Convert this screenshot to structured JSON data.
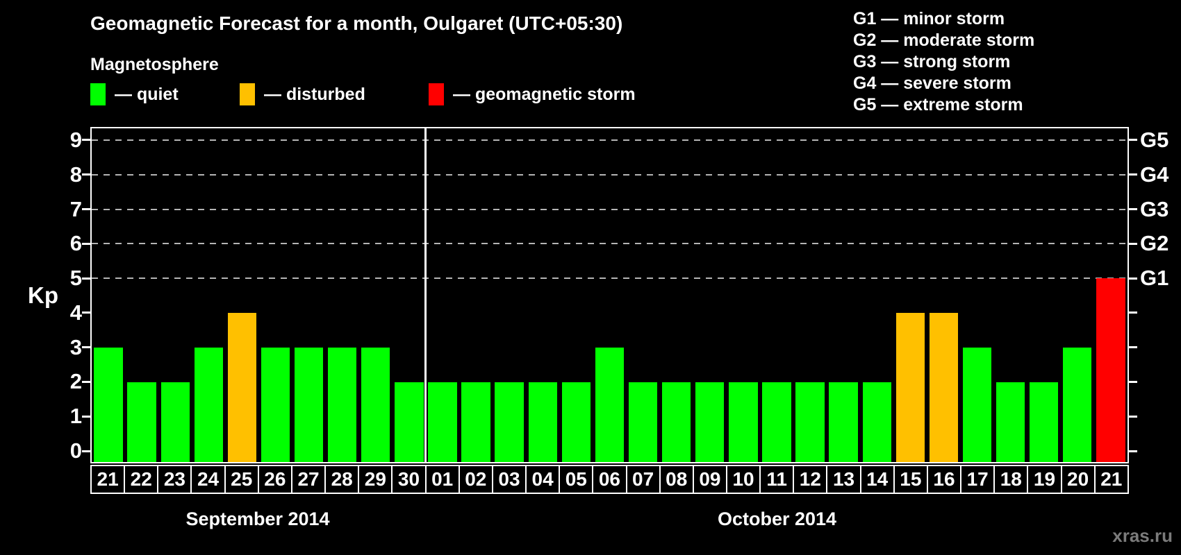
{
  "header": {
    "title": "Geomagnetic Forecast for a month, Oulgaret (UTC+05:30)",
    "subtitle": "Magnetosphere"
  },
  "legend": {
    "items": [
      {
        "id": "quiet",
        "label": "— quiet",
        "color": "#00ff00"
      },
      {
        "id": "disturbed",
        "label": "— disturbed",
        "color": "#ffc000"
      },
      {
        "id": "storm",
        "label": "— geomagnetic storm",
        "color": "#ff0000"
      }
    ]
  },
  "g_scale_legend": {
    "items": [
      "G1 — minor storm",
      "G2 — moderate storm",
      "G3 — strong storm",
      "G4 — severe storm",
      "G5 — extreme storm"
    ]
  },
  "chart_data": {
    "type": "bar",
    "title": "Geomagnetic Forecast for a month, Oulgaret (UTC+05:30)",
    "ylabel": "Kp",
    "ylim": [
      0,
      9
    ],
    "yticks": [
      0,
      1,
      2,
      3,
      4,
      5,
      6,
      7,
      8,
      9
    ],
    "grid": "dashed horizontal lines at Kp 5-9 (G1-G5 levels)",
    "right_axis": [
      {
        "kp": 5,
        "label": "G1"
      },
      {
        "kp": 6,
        "label": "G2"
      },
      {
        "kp": 7,
        "label": "G3"
      },
      {
        "kp": 8,
        "label": "G4"
      },
      {
        "kp": 9,
        "label": "G5"
      }
    ],
    "status_colors": {
      "quiet": "#00ff00",
      "disturbed": "#ffc000",
      "storm": "#ff0000"
    },
    "months": [
      {
        "label": "September 2014",
        "days": [
          "21",
          "22",
          "23",
          "24",
          "25",
          "26",
          "27",
          "28",
          "29",
          "30"
        ],
        "values": [
          3,
          2,
          2,
          3,
          4,
          3,
          3,
          3,
          3,
          2
        ],
        "status": [
          "quiet",
          "quiet",
          "quiet",
          "quiet",
          "disturbed",
          "quiet",
          "quiet",
          "quiet",
          "quiet",
          "quiet"
        ]
      },
      {
        "label": "October 2014",
        "days": [
          "01",
          "02",
          "03",
          "04",
          "05",
          "06",
          "07",
          "08",
          "09",
          "10",
          "11",
          "12",
          "13",
          "14",
          "15",
          "16",
          "17",
          "18",
          "19",
          "20",
          "21"
        ],
        "values": [
          2,
          2,
          2,
          2,
          2,
          3,
          2,
          2,
          2,
          2,
          2,
          2,
          2,
          2,
          4,
          4,
          3,
          2,
          2,
          3,
          5
        ],
        "status": [
          "quiet",
          "quiet",
          "quiet",
          "quiet",
          "quiet",
          "quiet",
          "quiet",
          "quiet",
          "quiet",
          "quiet",
          "quiet",
          "quiet",
          "quiet",
          "quiet",
          "disturbed",
          "disturbed",
          "quiet",
          "quiet",
          "quiet",
          "quiet",
          "storm"
        ]
      }
    ]
  },
  "watermark": "xras.ru"
}
